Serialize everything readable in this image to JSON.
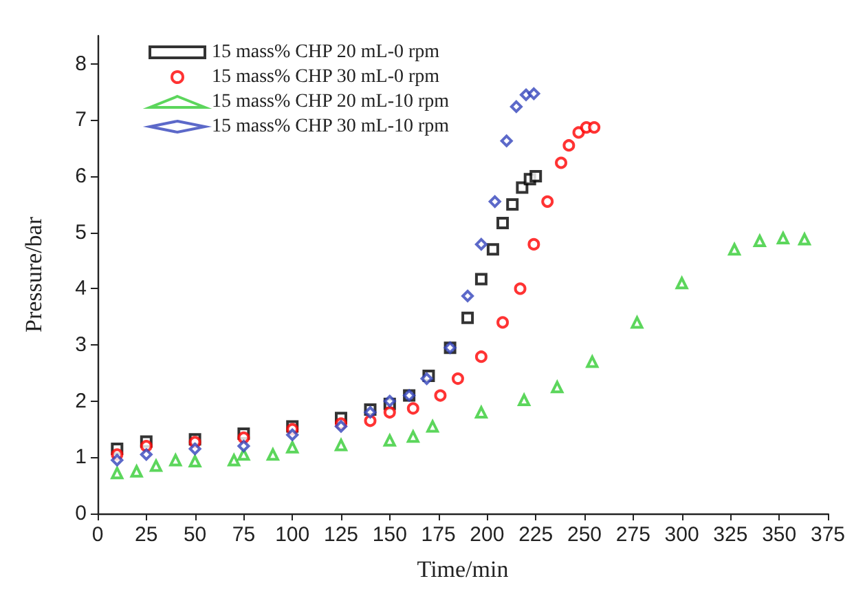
{
  "chart_data": {
    "type": "scatter",
    "xlabel": "Time/min",
    "ylabel": "Pressure/bar",
    "xlim": [
      0,
      375
    ],
    "xticks": [
      0,
      25,
      50,
      75,
      100,
      125,
      150,
      175,
      200,
      225,
      250,
      275,
      300,
      325,
      350,
      375
    ],
    "ylim": [
      0,
      8.5
    ],
    "yticks": [
      0,
      1,
      2,
      3,
      4,
      5,
      6,
      7,
      8
    ],
    "grid": false,
    "legend": "top left",
    "series": [
      {
        "name": "15 mass% CHP 20 mL-0 rpm",
        "color": "#000000",
        "marker": "square",
        "x": [
          10,
          25,
          50,
          75,
          100,
          125,
          140,
          150,
          160,
          170,
          181,
          190,
          197,
          203,
          208,
          213,
          218,
          222,
          225
        ],
        "values": [
          1.15,
          1.28,
          1.32,
          1.42,
          1.55,
          1.7,
          1.85,
          1.95,
          2.1,
          2.45,
          2.95,
          3.48,
          4.17,
          4.7,
          5.17,
          5.5,
          5.8,
          5.95,
          6.0
        ]
      },
      {
        "name": "15 mass% CHP 30 mL-0 rpm",
        "color": "#ff0000",
        "marker": "circle",
        "x": [
          10,
          25,
          50,
          75,
          100,
          125,
          140,
          150,
          162,
          176,
          185,
          197,
          208,
          217,
          224,
          231,
          238,
          242,
          247,
          251,
          255
        ],
        "values": [
          1.05,
          1.2,
          1.27,
          1.35,
          1.5,
          1.6,
          1.65,
          1.8,
          1.87,
          2.1,
          2.4,
          2.79,
          3.4,
          4.0,
          4.79,
          5.55,
          6.24,
          6.55,
          6.78,
          6.87,
          6.87
        ]
      },
      {
        "name": "15 mass% CHP 20 mL-10 rpm",
        "color": "#33cc33",
        "marker": "triangle",
        "x": [
          10,
          20,
          30,
          40,
          50,
          70,
          75,
          90,
          100,
          125,
          150,
          162,
          172,
          197,
          219,
          236,
          254,
          277,
          300,
          327,
          340,
          352,
          363
        ],
        "values": [
          0.72,
          0.75,
          0.85,
          0.95,
          0.93,
          0.95,
          1.05,
          1.05,
          1.18,
          1.22,
          1.3,
          1.37,
          1.55,
          1.8,
          2.02,
          2.25,
          2.7,
          3.4,
          4.1,
          4.7,
          4.85,
          4.9,
          4.88
        ]
      },
      {
        "name": "15 mass% CHP 30 mL-10 rpm",
        "color": "#3344bb",
        "marker": "diamond",
        "x": [
          10,
          25,
          50,
          75,
          100,
          125,
          140,
          150,
          160,
          169,
          181,
          190,
          197,
          204,
          210,
          215,
          220,
          224
        ],
        "values": [
          0.95,
          1.05,
          1.15,
          1.2,
          1.4,
          1.55,
          1.8,
          2.0,
          2.1,
          2.4,
          2.95,
          3.87,
          4.79,
          5.55,
          6.63,
          7.24,
          7.45,
          7.47
        ]
      }
    ]
  }
}
